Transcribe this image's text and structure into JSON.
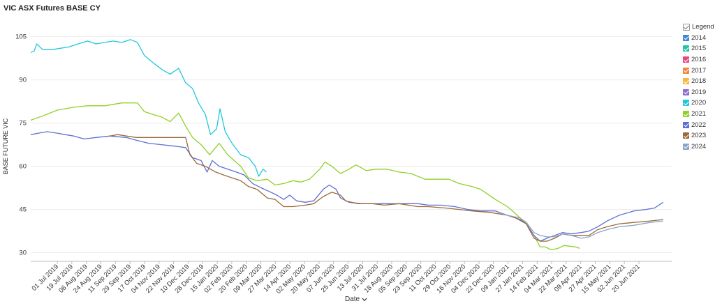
{
  "title": "VIC ASX Futures BASE CY",
  "legend_label": "Legend",
  "chart_data": {
    "type": "line",
    "title": "VIC ASX Futures BASE CY",
    "xlabel": "Date",
    "ylabel": "BASE FUTURE VIC",
    "x_start": "2019-07-01",
    "x_end": "2021-07-15",
    "ylim": [
      27,
      110
    ],
    "yticks": [
      30,
      45,
      60,
      75,
      90,
      105
    ],
    "x_tick_labels": [
      "01 Jul 2019",
      "19 Jul 2019",
      "06 Aug 2019",
      "24 Aug 2019",
      "11 Sep 2019",
      "29 Sep 2019",
      "17 Oct 2019",
      "04 Nov 2019",
      "22 Nov 2019",
      "10 Dec 2019",
      "28 Dec 2019",
      "15 Jan 2020",
      "02 Feb 2020",
      "20 Feb 2020",
      "09 Mar 2020",
      "27 Mar 2020",
      "14 Apr 2020",
      "02 May 2020",
      "20 May 2020",
      "07 Jun 2020",
      "25 Jun 2020",
      "13 Jul 2020",
      "31 Jul 2020",
      "18 Aug 2020",
      "05 Sep 2020",
      "23 Sep 2020",
      "11 Oct 2020",
      "29 Oct 2020",
      "16 Nov 2020",
      "04 Dec 2020",
      "22 Dec 2020",
      "09 Jan 2021",
      "27 Jan 2021",
      "14 Feb 2021",
      "04 Mar 2021",
      "22 Mar 2021",
      "09 Apr 2021",
      "27 Apr 2021",
      "15 May 2021",
      "02 Jun 2021",
      "20 Jun 2021"
    ],
    "grid": "horizontal",
    "legend_position": "right",
    "series": [
      {
        "name": "2014",
        "color": "#3f86d9",
        "points": []
      },
      {
        "name": "2015",
        "color": "#23c4a8",
        "points": []
      },
      {
        "name": "2016",
        "color": "#e8457a",
        "points": []
      },
      {
        "name": "2017",
        "color": "#f0873a",
        "points": []
      },
      {
        "name": "2018",
        "color": "#f6b93b",
        "points": []
      },
      {
        "name": "2019",
        "color": "#8e6fd1",
        "points": []
      },
      {
        "name": "2020",
        "color": "#1fc8dc",
        "points": [
          [
            "2019-07-01",
            99.5
          ],
          [
            "2019-07-05",
            100
          ],
          [
            "2019-07-08",
            102.5
          ],
          [
            "2019-07-15",
            100.5
          ],
          [
            "2019-07-25",
            100.5
          ],
          [
            "2019-08-05",
            101
          ],
          [
            "2019-08-15",
            101.5
          ],
          [
            "2019-08-25",
            102.5
          ],
          [
            "2019-09-05",
            103.5
          ],
          [
            "2019-09-15",
            102.5
          ],
          [
            "2019-09-25",
            103
          ],
          [
            "2019-10-05",
            103.5
          ],
          [
            "2019-10-15",
            103
          ],
          [
            "2019-10-25",
            104
          ],
          [
            "2019-11-02",
            103
          ],
          [
            "2019-11-10",
            98.5
          ],
          [
            "2019-11-20",
            96
          ],
          [
            "2019-12-01",
            93.5
          ],
          [
            "2019-12-10",
            92
          ],
          [
            "2019-12-20",
            94
          ],
          [
            "2019-12-28",
            89
          ],
          [
            "2020-01-05",
            87
          ],
          [
            "2020-01-12",
            82
          ],
          [
            "2020-01-20",
            78
          ],
          [
            "2020-01-26",
            71
          ],
          [
            "2020-02-02",
            73
          ],
          [
            "2020-02-06",
            80
          ],
          [
            "2020-02-12",
            72
          ],
          [
            "2020-02-20",
            68
          ],
          [
            "2020-03-01",
            64
          ],
          [
            "2020-03-10",
            63
          ],
          [
            "2020-03-18",
            60
          ],
          [
            "2020-03-22",
            56.5
          ],
          [
            "2020-03-27",
            59
          ],
          [
            "2020-03-31",
            58
          ]
        ]
      },
      {
        "name": "2021",
        "color": "#8fd127",
        "points": [
          [
            "2019-07-01",
            76
          ],
          [
            "2019-07-15",
            77.5
          ],
          [
            "2019-08-01",
            79.5
          ],
          [
            "2019-08-20",
            80.5
          ],
          [
            "2019-09-05",
            81
          ],
          [
            "2019-09-25",
            81
          ],
          [
            "2019-10-15",
            82
          ],
          [
            "2019-11-02",
            82
          ],
          [
            "2019-11-10",
            79
          ],
          [
            "2019-11-20",
            78
          ],
          [
            "2019-12-01",
            77
          ],
          [
            "2019-12-10",
            75.5
          ],
          [
            "2019-12-20",
            78.5
          ],
          [
            "2019-12-28",
            74
          ],
          [
            "2020-01-05",
            70
          ],
          [
            "2020-01-15",
            67.5
          ],
          [
            "2020-01-25",
            64
          ],
          [
            "2020-02-05",
            68
          ],
          [
            "2020-02-15",
            64
          ],
          [
            "2020-03-01",
            60
          ],
          [
            "2020-03-10",
            56
          ],
          [
            "2020-03-20",
            55
          ],
          [
            "2020-04-01",
            55.5
          ],
          [
            "2020-04-10",
            53.5
          ],
          [
            "2020-04-20",
            54
          ],
          [
            "2020-05-01",
            55
          ],
          [
            "2020-05-10",
            54.5
          ],
          [
            "2020-05-20",
            55.5
          ],
          [
            "2020-06-01",
            59
          ],
          [
            "2020-06-07",
            61.5
          ],
          [
            "2020-06-15",
            60
          ],
          [
            "2020-06-25",
            57.5
          ],
          [
            "2020-07-05",
            59
          ],
          [
            "2020-07-13",
            60.5
          ],
          [
            "2020-07-25",
            58.5
          ],
          [
            "2020-08-05",
            59
          ],
          [
            "2020-08-18",
            59
          ],
          [
            "2020-09-01",
            58
          ],
          [
            "2020-09-15",
            57.5
          ],
          [
            "2020-10-01",
            55.5
          ],
          [
            "2020-10-15",
            55.5
          ],
          [
            "2020-10-29",
            55.5
          ],
          [
            "2020-11-10",
            54
          ],
          [
            "2020-11-25",
            53
          ],
          [
            "2020-12-05",
            52
          ],
          [
            "2020-12-22",
            48.5
          ],
          [
            "2021-01-05",
            46
          ],
          [
            "2021-01-09",
            45
          ],
          [
            "2021-01-20",
            42
          ],
          [
            "2021-01-27",
            40
          ],
          [
            "2021-02-05",
            36
          ],
          [
            "2021-02-12",
            32
          ],
          [
            "2021-02-18",
            32
          ],
          [
            "2021-02-25",
            31
          ],
          [
            "2021-03-05",
            31.5
          ],
          [
            "2021-03-12",
            32.5
          ],
          [
            "2021-03-25",
            32
          ],
          [
            "2021-03-30",
            31.5
          ]
        ]
      },
      {
        "name": "2022",
        "color": "#5d6fd0",
        "points": [
          [
            "2019-07-01",
            71
          ],
          [
            "2019-07-10",
            71.5
          ],
          [
            "2019-07-20",
            72
          ],
          [
            "2019-08-01",
            71.5
          ],
          [
            "2019-08-10",
            71
          ],
          [
            "2019-08-20",
            70.5
          ],
          [
            "2019-09-01",
            69.5
          ],
          [
            "2019-09-15",
            70
          ],
          [
            "2019-10-01",
            70.5
          ],
          [
            "2019-10-20",
            70
          ],
          [
            "2019-11-01",
            69
          ],
          [
            "2019-11-15",
            68
          ],
          [
            "2019-11-30",
            67.5
          ],
          [
            "2019-12-15",
            67
          ],
          [
            "2019-12-28",
            66.5
          ],
          [
            "2020-01-05",
            63
          ],
          [
            "2020-01-15",
            62
          ],
          [
            "2020-01-22",
            58
          ],
          [
            "2020-01-28",
            62
          ],
          [
            "2020-02-05",
            60
          ],
          [
            "2020-02-15",
            59
          ],
          [
            "2020-02-25",
            58
          ],
          [
            "2020-03-05",
            57
          ],
          [
            "2020-03-15",
            54
          ],
          [
            "2020-03-25",
            52.5
          ],
          [
            "2020-04-05",
            51
          ],
          [
            "2020-04-12",
            50
          ],
          [
            "2020-04-20",
            48.5
          ],
          [
            "2020-04-27",
            50
          ],
          [
            "2020-05-05",
            48
          ],
          [
            "2020-05-15",
            47.5
          ],
          [
            "2020-05-25",
            48
          ],
          [
            "2020-06-05",
            52
          ],
          [
            "2020-06-12",
            53.5
          ],
          [
            "2020-06-20",
            52
          ],
          [
            "2020-06-25",
            49
          ],
          [
            "2020-07-05",
            47.5
          ],
          [
            "2020-07-20",
            47
          ],
          [
            "2020-08-05",
            47
          ],
          [
            "2020-08-20",
            47
          ],
          [
            "2020-09-05",
            47
          ],
          [
            "2020-09-23",
            47
          ],
          [
            "2020-10-05",
            46.5
          ],
          [
            "2020-10-20",
            46.5
          ],
          [
            "2020-11-05",
            46
          ],
          [
            "2020-11-20",
            45
          ],
          [
            "2020-12-05",
            44.5
          ],
          [
            "2020-12-22",
            44.5
          ],
          [
            "2021-01-05",
            43
          ],
          [
            "2021-01-15",
            42
          ],
          [
            "2021-01-27",
            40
          ],
          [
            "2021-02-05",
            36
          ],
          [
            "2021-02-12",
            34
          ],
          [
            "2021-02-20",
            35
          ],
          [
            "2021-03-01",
            36
          ],
          [
            "2021-03-10",
            37
          ],
          [
            "2021-03-20",
            36.5
          ],
          [
            "2021-04-01",
            37
          ],
          [
            "2021-04-10",
            37.5
          ],
          [
            "2021-04-20",
            39
          ],
          [
            "2021-05-01",
            41
          ],
          [
            "2021-05-15",
            43
          ],
          [
            "2021-06-01",
            44.5
          ],
          [
            "2021-06-15",
            45
          ],
          [
            "2021-06-25",
            45.5
          ],
          [
            "2021-07-05",
            47.5
          ]
        ]
      },
      {
        "name": "2023",
        "color": "#9b6a3a",
        "points": [
          [
            "2019-10-01",
            70.5
          ],
          [
            "2019-10-10",
            71
          ],
          [
            "2019-10-20",
            70.5
          ],
          [
            "2019-11-01",
            70
          ],
          [
            "2019-12-01",
            70
          ],
          [
            "2019-12-28",
            70
          ],
          [
            "2020-01-02",
            64
          ],
          [
            "2020-01-10",
            61
          ],
          [
            "2020-01-20",
            60
          ],
          [
            "2020-02-01",
            58
          ],
          [
            "2020-02-10",
            57
          ],
          [
            "2020-02-20",
            56
          ],
          [
            "2020-03-01",
            55
          ],
          [
            "2020-03-10",
            53
          ],
          [
            "2020-03-20",
            52
          ],
          [
            "2020-04-01",
            49
          ],
          [
            "2020-04-10",
            48.5
          ],
          [
            "2020-04-20",
            46
          ],
          [
            "2020-05-01",
            46
          ],
          [
            "2020-05-15",
            46.5
          ],
          [
            "2020-05-25",
            47
          ],
          [
            "2020-06-05",
            49.5
          ],
          [
            "2020-06-15",
            51
          ],
          [
            "2020-06-25",
            50
          ],
          [
            "2020-07-01",
            48
          ],
          [
            "2020-07-15",
            47
          ],
          [
            "2020-08-01",
            47
          ],
          [
            "2020-08-15",
            46.5
          ],
          [
            "2020-09-01",
            47
          ],
          [
            "2020-09-23",
            46
          ],
          [
            "2020-10-05",
            46
          ],
          [
            "2020-10-25",
            45.5
          ],
          [
            "2020-11-10",
            45
          ],
          [
            "2020-11-25",
            44.5
          ],
          [
            "2020-12-15",
            44
          ],
          [
            "2021-01-05",
            43
          ],
          [
            "2021-01-20",
            41.5
          ],
          [
            "2021-01-27",
            40
          ],
          [
            "2021-02-05",
            35
          ],
          [
            "2021-02-12",
            34
          ],
          [
            "2021-02-20",
            34
          ],
          [
            "2021-03-01",
            35
          ],
          [
            "2021-03-10",
            36.5
          ],
          [
            "2021-03-20",
            36
          ],
          [
            "2021-04-01",
            36
          ],
          [
            "2021-04-10",
            36
          ],
          [
            "2021-04-20",
            38
          ],
          [
            "2021-05-01",
            39
          ],
          [
            "2021-05-15",
            40
          ],
          [
            "2021-06-01",
            40.5
          ],
          [
            "2021-06-20",
            41
          ],
          [
            "2021-07-05",
            41.5
          ]
        ]
      },
      {
        "name": "2024",
        "color": "#8ea3c6",
        "points": [
          [
            "2020-12-25",
            44
          ],
          [
            "2021-01-05",
            43
          ],
          [
            "2021-01-20",
            42
          ],
          [
            "2021-01-27",
            40.5
          ],
          [
            "2021-02-05",
            37
          ],
          [
            "2021-02-12",
            36
          ],
          [
            "2021-02-20",
            35.5
          ],
          [
            "2021-03-01",
            35.5
          ],
          [
            "2021-03-10",
            36.5
          ],
          [
            "2021-03-20",
            36
          ],
          [
            "2021-04-01",
            35
          ],
          [
            "2021-04-10",
            35.5
          ],
          [
            "2021-04-20",
            37
          ],
          [
            "2021-05-01",
            38
          ],
          [
            "2021-05-15",
            39
          ],
          [
            "2021-06-01",
            39.5
          ],
          [
            "2021-06-20",
            40.5
          ],
          [
            "2021-07-05",
            41
          ]
        ]
      }
    ]
  }
}
